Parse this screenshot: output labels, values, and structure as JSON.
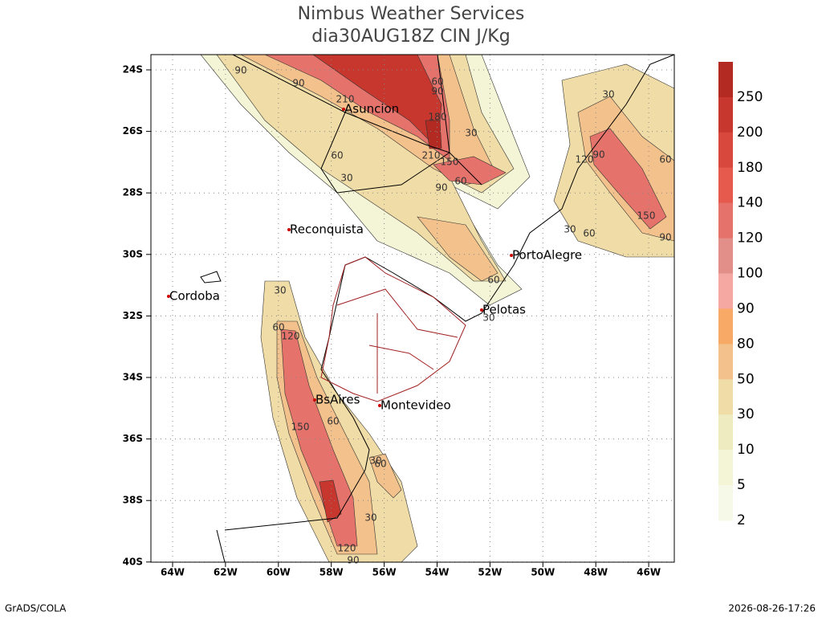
{
  "header": {
    "title": "Nimbus Weather Services",
    "subtitle": "dia30AUG18Z CIN J/Kg"
  },
  "lat_ticks": [
    "24S",
    "26S",
    "28S",
    "30S",
    "32S",
    "34S",
    "36S",
    "38S",
    "40S"
  ],
  "lon_ticks": [
    "64W",
    "62W",
    "60W",
    "58W",
    "56W",
    "54W",
    "52W",
    "50W",
    "48W",
    "46W"
  ],
  "cities": [
    "Asuncion",
    "Reconquista",
    "Cordoba",
    "PortoAlegre",
    "Pelotas",
    "BsAires",
    "Montevideo"
  ],
  "contour_labels": [
    "90",
    "90",
    "210",
    "60",
    "90",
    "180",
    "30",
    "60",
    "210",
    "150",
    "30",
    "90",
    "60",
    "30",
    "120",
    "90",
    "60",
    "150",
    "30",
    "60",
    "90",
    "60",
    "30",
    "60",
    "120",
    "30",
    "150",
    "60",
    "30",
    "60",
    "30",
    "120",
    "90"
  ],
  "colorbar": {
    "levels": [
      250,
      200,
      180,
      140,
      120,
      100,
      90,
      80,
      50,
      30,
      10,
      5,
      2
    ],
    "colors": [
      "#b22a22",
      "#c8372e",
      "#d9483c",
      "#e65a4e",
      "#e5736b",
      "#e28f89",
      "#f5a8a2",
      "#f9a966",
      "#f3c18b",
      "#f0dca6",
      "#efebc0",
      "#f4f5d6",
      "#f7f9e8"
    ]
  },
  "footer": {
    "left": "GrADS/COLA",
    "right": "2026-08-26-17:26"
  }
}
